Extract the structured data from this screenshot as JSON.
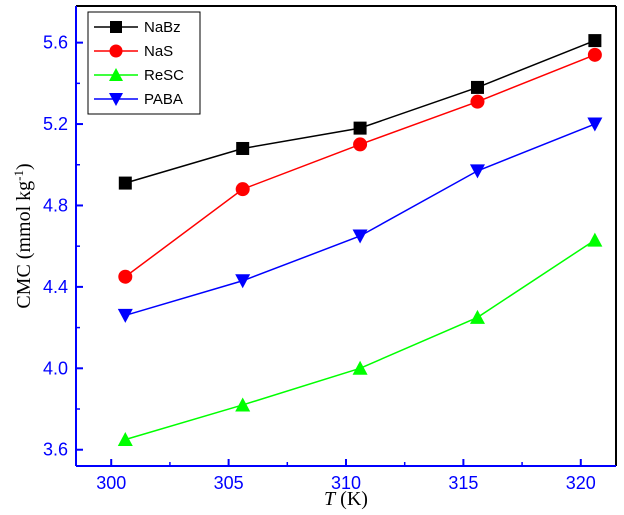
{
  "colors": {
    "left_axis": "#0000ff",
    "bottom_axis": "#0000ff",
    "frame": "#000000"
  },
  "chart_data": {
    "type": "line",
    "xlabel": {
      "italic": "T",
      "rest": " (K)"
    },
    "ylabel": {
      "main": "CMC (mmol kg",
      "superscript": "-1",
      "close": ")"
    },
    "xlim": [
      298.5,
      321.5
    ],
    "ylim": [
      3.52,
      5.78
    ],
    "x_ticks": [
      300,
      305,
      310,
      315,
      320
    ],
    "x_tick_labels": [
      "300",
      "305",
      "310",
      "315",
      "320"
    ],
    "y_ticks": [
      3.6,
      4.0,
      4.4,
      4.8,
      5.2,
      5.6
    ],
    "y_tick_labels": [
      "3.6",
      "4.0",
      "4.4",
      "4.8",
      "5.2",
      "5.6"
    ],
    "grid": false,
    "legend_position": "top-left",
    "x": [
      300.6,
      305.6,
      310.6,
      315.6,
      320.6
    ],
    "series": [
      {
        "name": "NaBz",
        "color": "#000000",
        "marker": "square",
        "values": [
          4.91,
          5.08,
          5.18,
          5.38,
          5.61
        ]
      },
      {
        "name": "NaS",
        "color": "#ff0000",
        "marker": "circle",
        "values": [
          4.45,
          4.88,
          5.1,
          5.31,
          5.54
        ]
      },
      {
        "name": "ReSC",
        "color": "#00ff00",
        "marker": "triangle-up",
        "values": [
          3.65,
          3.82,
          4.0,
          4.25,
          4.63
        ]
      },
      {
        "name": "PABA",
        "color": "#0000ff",
        "marker": "triangle-down",
        "values": [
          4.26,
          4.43,
          4.65,
          4.97,
          5.2
        ]
      }
    ]
  }
}
